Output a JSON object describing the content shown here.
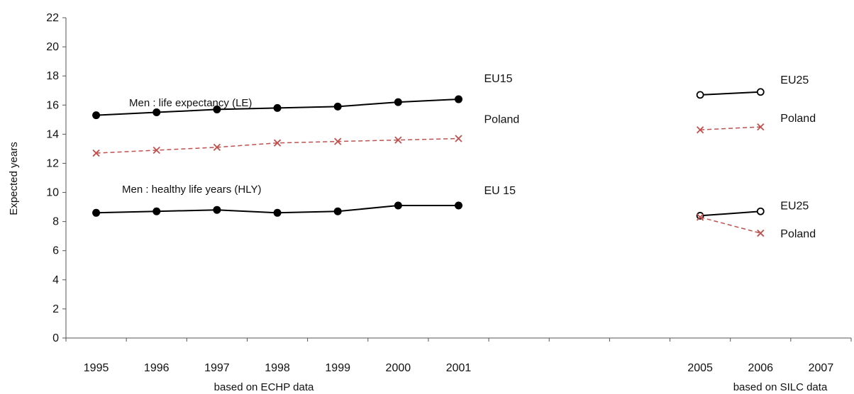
{
  "chart_data": {
    "type": "line",
    "ylabel": "Expected years",
    "ylim": [
      0,
      22
    ],
    "yticks": [
      "0",
      "2",
      "4",
      "6",
      "8",
      "10",
      "12",
      "14",
      "16",
      "18",
      "20",
      "22"
    ],
    "grid": false,
    "x_categories": [
      "1995",
      "1996",
      "1997",
      "1998",
      "1999",
      "2000",
      "2001",
      "",
      "",
      "",
      "2005",
      "2006",
      "2007"
    ],
    "sublabels": {
      "left": "based on ECHP data",
      "right": "based on SILC data"
    },
    "annotations": {
      "le": "Men  :  life expectancy (LE)",
      "hly": "Men :  healthy life years (HLY)"
    },
    "series": [
      {
        "name": "EU15",
        "label": "EU15",
        "group": "le",
        "style": "solid",
        "marker": "dot",
        "color": "#000000",
        "x": [
          "1995",
          "1996",
          "1997",
          "1998",
          "1999",
          "2000",
          "2001"
        ],
        "values": [
          15.3,
          15.5,
          15.7,
          15.8,
          15.9,
          16.2,
          16.4
        ]
      },
      {
        "name": "Poland",
        "label": "Poland",
        "group": "le",
        "style": "dashed",
        "marker": "x",
        "color": "#c0504d",
        "x": [
          "1995",
          "1996",
          "1997",
          "1998",
          "1999",
          "2000",
          "2001"
        ],
        "values": [
          12.7,
          12.9,
          13.1,
          13.4,
          13.5,
          13.6,
          13.7
        ]
      },
      {
        "name": "EU 15",
        "label": "EU 15",
        "group": "hly",
        "style": "solid",
        "marker": "dot",
        "color": "#000000",
        "x": [
          "1995",
          "1996",
          "1997",
          "1998",
          "1999",
          "2000",
          "2001"
        ],
        "values": [
          8.6,
          8.7,
          8.8,
          8.6,
          8.7,
          9.1,
          9.1
        ]
      },
      {
        "name": "EU25",
        "label": "EU25",
        "group": "le",
        "style": "solid",
        "marker": "circle",
        "color": "#000000",
        "x": [
          "2005",
          "2006"
        ],
        "values": [
          16.7,
          16.9
        ]
      },
      {
        "name": "Poland",
        "label": "Poland",
        "group": "le",
        "style": "dashed",
        "marker": "x",
        "color": "#c0504d",
        "x": [
          "2005",
          "2006"
        ],
        "values": [
          14.3,
          14.5
        ]
      },
      {
        "name": "EU25",
        "label": "EU25",
        "group": "hly",
        "style": "solid",
        "marker": "circle",
        "color": "#000000",
        "x": [
          "2005",
          "2006"
        ],
        "values": [
          8.4,
          8.7
        ]
      },
      {
        "name": "Poland",
        "label": "Poland",
        "group": "hly",
        "style": "dashed",
        "marker": "x",
        "color": "#c0504d",
        "x": [
          "2005",
          "2006"
        ],
        "values": [
          8.3,
          7.2
        ]
      }
    ]
  }
}
